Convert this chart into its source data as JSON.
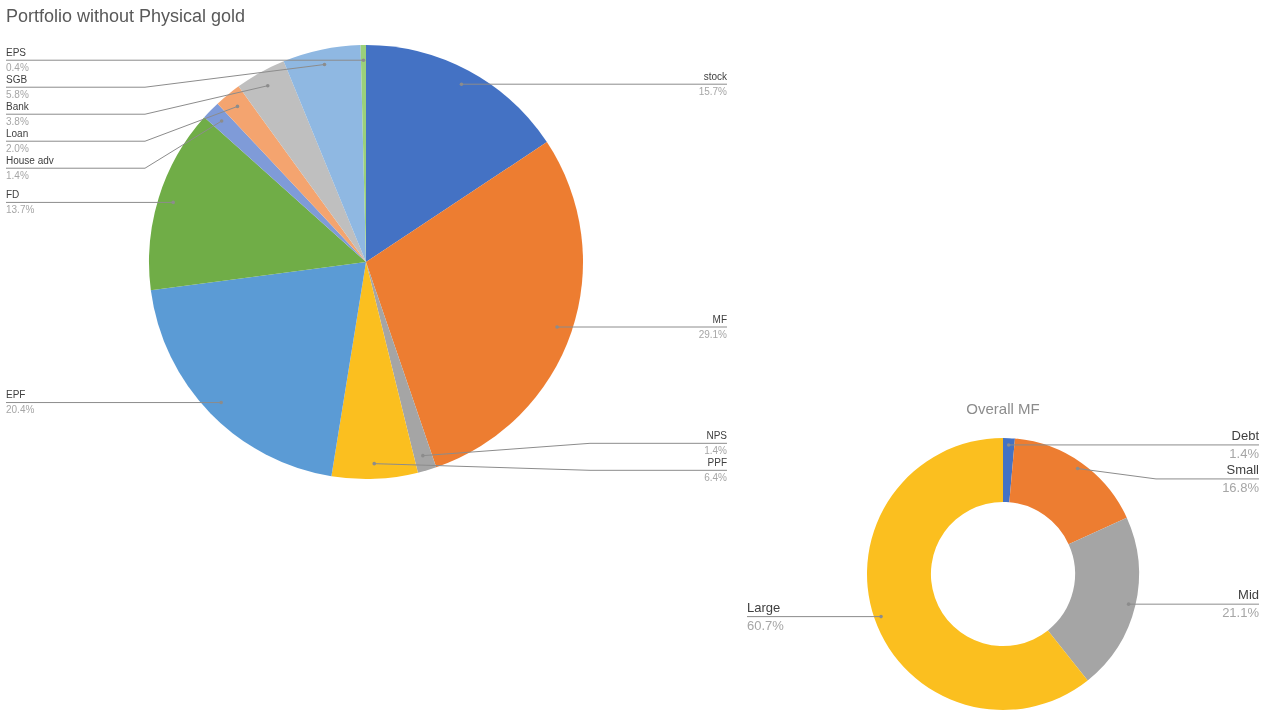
{
  "chart_data": [
    {
      "type": "pie",
      "title": "Portfolio without Physical gold",
      "categories": [
        "stock",
        "MF",
        "NPS",
        "PPF",
        "EPF",
        "FD",
        "House adv",
        "Loan",
        "Bank",
        "SGB",
        "EPS"
      ],
      "values": [
        15.7,
        29.1,
        1.4,
        6.4,
        20.4,
        13.7,
        1.4,
        2.0,
        3.8,
        5.8,
        0.4
      ],
      "colors": [
        "#4472c4",
        "#ed7d31",
        "#a5a5a5",
        "#fbbf1f",
        "#5b9bd5",
        "#70ad47",
        "#7f9bd8",
        "#f4a46f",
        "#bfbfbf",
        "#8fb8e2",
        "#9bd07a"
      ],
      "value_labels": [
        "15.7%",
        "29.1%",
        "1.4%",
        "6.4%",
        "20.4%",
        "13.7%",
        "1.4%",
        "2.0%",
        "3.8%",
        "5.8%",
        "0.4%"
      ]
    },
    {
      "type": "donut",
      "title": "Overall MF",
      "categories": [
        "Debt",
        "Small",
        "Mid",
        "Large"
      ],
      "values": [
        1.4,
        16.8,
        21.1,
        60.7
      ],
      "colors": [
        "#4472c4",
        "#ed7d31",
        "#a5a5a5",
        "#fbbf1f"
      ],
      "value_labels": [
        "1.4%",
        "16.8%",
        "21.1%",
        "60.7%"
      ]
    }
  ]
}
